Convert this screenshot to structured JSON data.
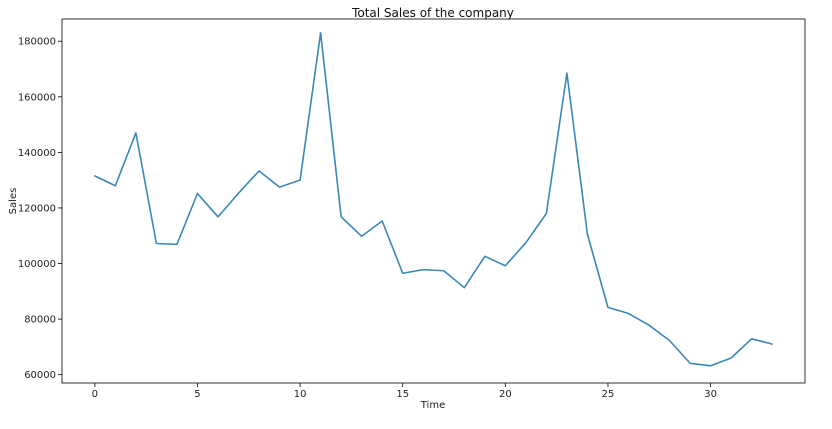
{
  "chart_data": {
    "type": "line",
    "title": "Total Sales of the company",
    "xlabel": "Time",
    "ylabel": "Sales",
    "xlim": [
      -1.6,
      34.6
    ],
    "ylim": [
      57000,
      188000
    ],
    "xticks": [
      0,
      5,
      10,
      15,
      20,
      25,
      30
    ],
    "yticks": [
      60000,
      80000,
      100000,
      120000,
      140000,
      160000,
      180000
    ],
    "grid": false,
    "series": [
      {
        "color": "#3a87b7",
        "x": [
          0,
          1,
          2,
          3,
          4,
          5,
          6,
          7,
          8,
          9,
          10,
          11,
          12,
          13,
          14,
          15,
          16,
          17,
          18,
          19,
          20,
          21,
          22,
          23,
          24,
          25,
          26,
          27,
          28,
          29,
          30,
          31,
          32,
          33
        ],
        "values": [
          131500,
          128000,
          147000,
          107200,
          106900,
          125200,
          116800,
          125300,
          133300,
          127500,
          130000,
          183000,
          116800,
          109800,
          115300,
          96500,
          97800,
          97400,
          91300,
          102600,
          99200,
          107500,
          118000,
          168500,
          110500,
          84200,
          82000,
          77800,
          72300,
          64100,
          63200,
          66000,
          72900,
          71000
        ]
      }
    ]
  }
}
